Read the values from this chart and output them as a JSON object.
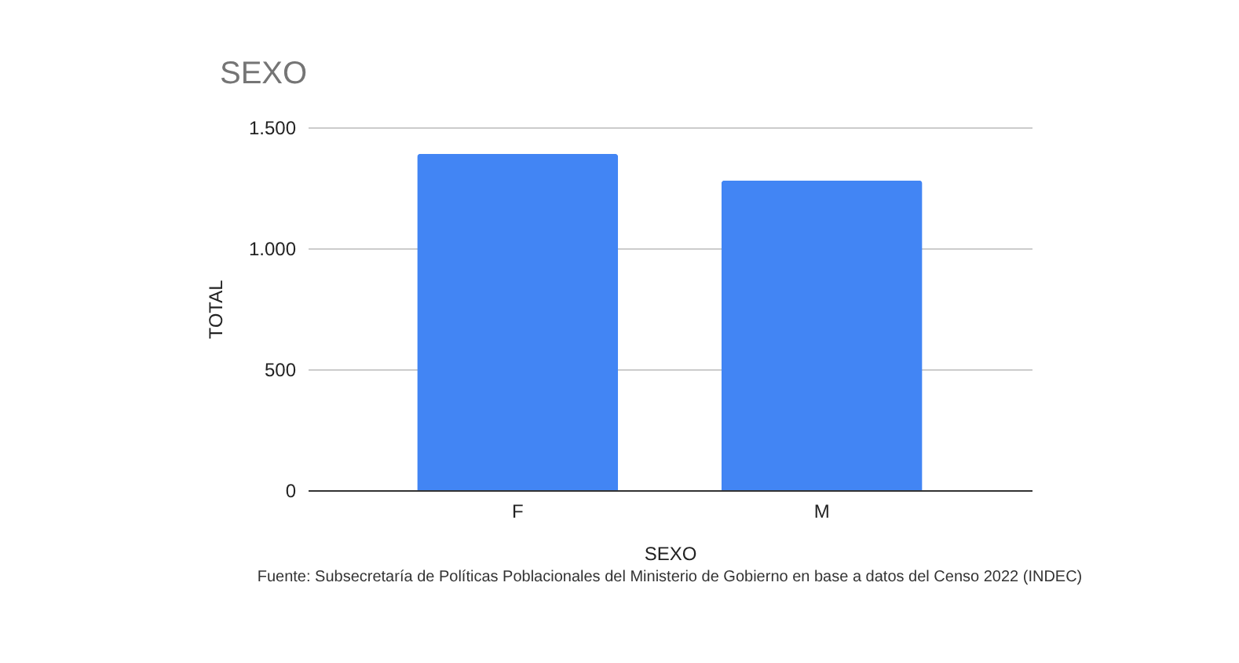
{
  "chart_data": {
    "type": "bar",
    "title": "SEXO",
    "xlabel": "SEXO",
    "ylabel": "TOTAL",
    "categories": [
      "F",
      "M"
    ],
    "values": [
      1390,
      1280
    ],
    "color": "#4285f4",
    "ylim": [
      0,
      1500
    ],
    "yticks": [
      0,
      500,
      {
        "value": 1000,
        "label": "1.000"
      },
      {
        "value": 1500,
        "label": "1.500"
      }
    ],
    "grid": "y",
    "annotations": [
      "Fuente: Subsecretaría de Políticas Poblacionales del Ministerio de Gobierno en base a datos del Censo 2022 (INDEC)"
    ]
  }
}
